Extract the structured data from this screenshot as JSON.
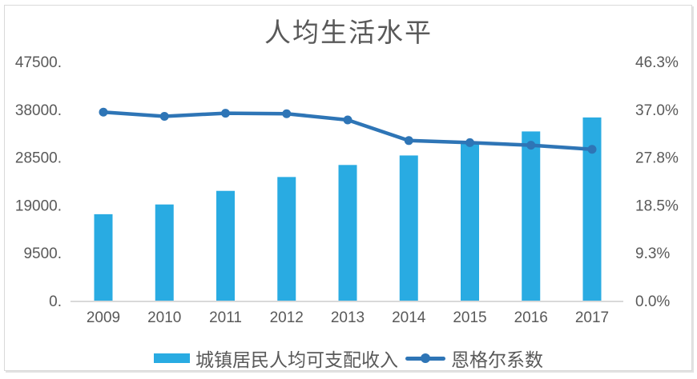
{
  "chart_data": {
    "type": "bar",
    "title": "人均生活水平",
    "categories": [
      "2009",
      "2010",
      "2011",
      "2012",
      "2013",
      "2014",
      "2015",
      "2016",
      "2017"
    ],
    "series": [
      {
        "name": "城镇居民人均可支配收入",
        "type": "bar",
        "axis": "left",
        "color": "#29ABE2",
        "values": [
          17175,
          19109,
          21810,
          24565,
          26955,
          28844,
          31195,
          33616,
          36396
        ]
      },
      {
        "name": "恩格尔系数",
        "type": "line",
        "axis": "right",
        "color": "#2E75B6",
        "values": [
          36.5,
          35.7,
          36.3,
          36.2,
          35.0,
          31.0,
          30.6,
          30.1,
          29.3
        ]
      }
    ],
    "left_axis": {
      "min": 0,
      "max": 47500,
      "tick_labels": [
        "47500.",
        "38000.",
        "28500.",
        "19000.",
        "9500.",
        "0."
      ]
    },
    "right_axis": {
      "min": 0,
      "max": 46.3,
      "tick_labels": [
        "46.3%",
        "37.0%",
        "27.8%",
        "18.5%",
        "9.3%",
        "0.0%"
      ]
    },
    "grid": false,
    "legend_position": "bottom",
    "axis_line_color": "#D9D9D9",
    "text_color": "#595959"
  }
}
